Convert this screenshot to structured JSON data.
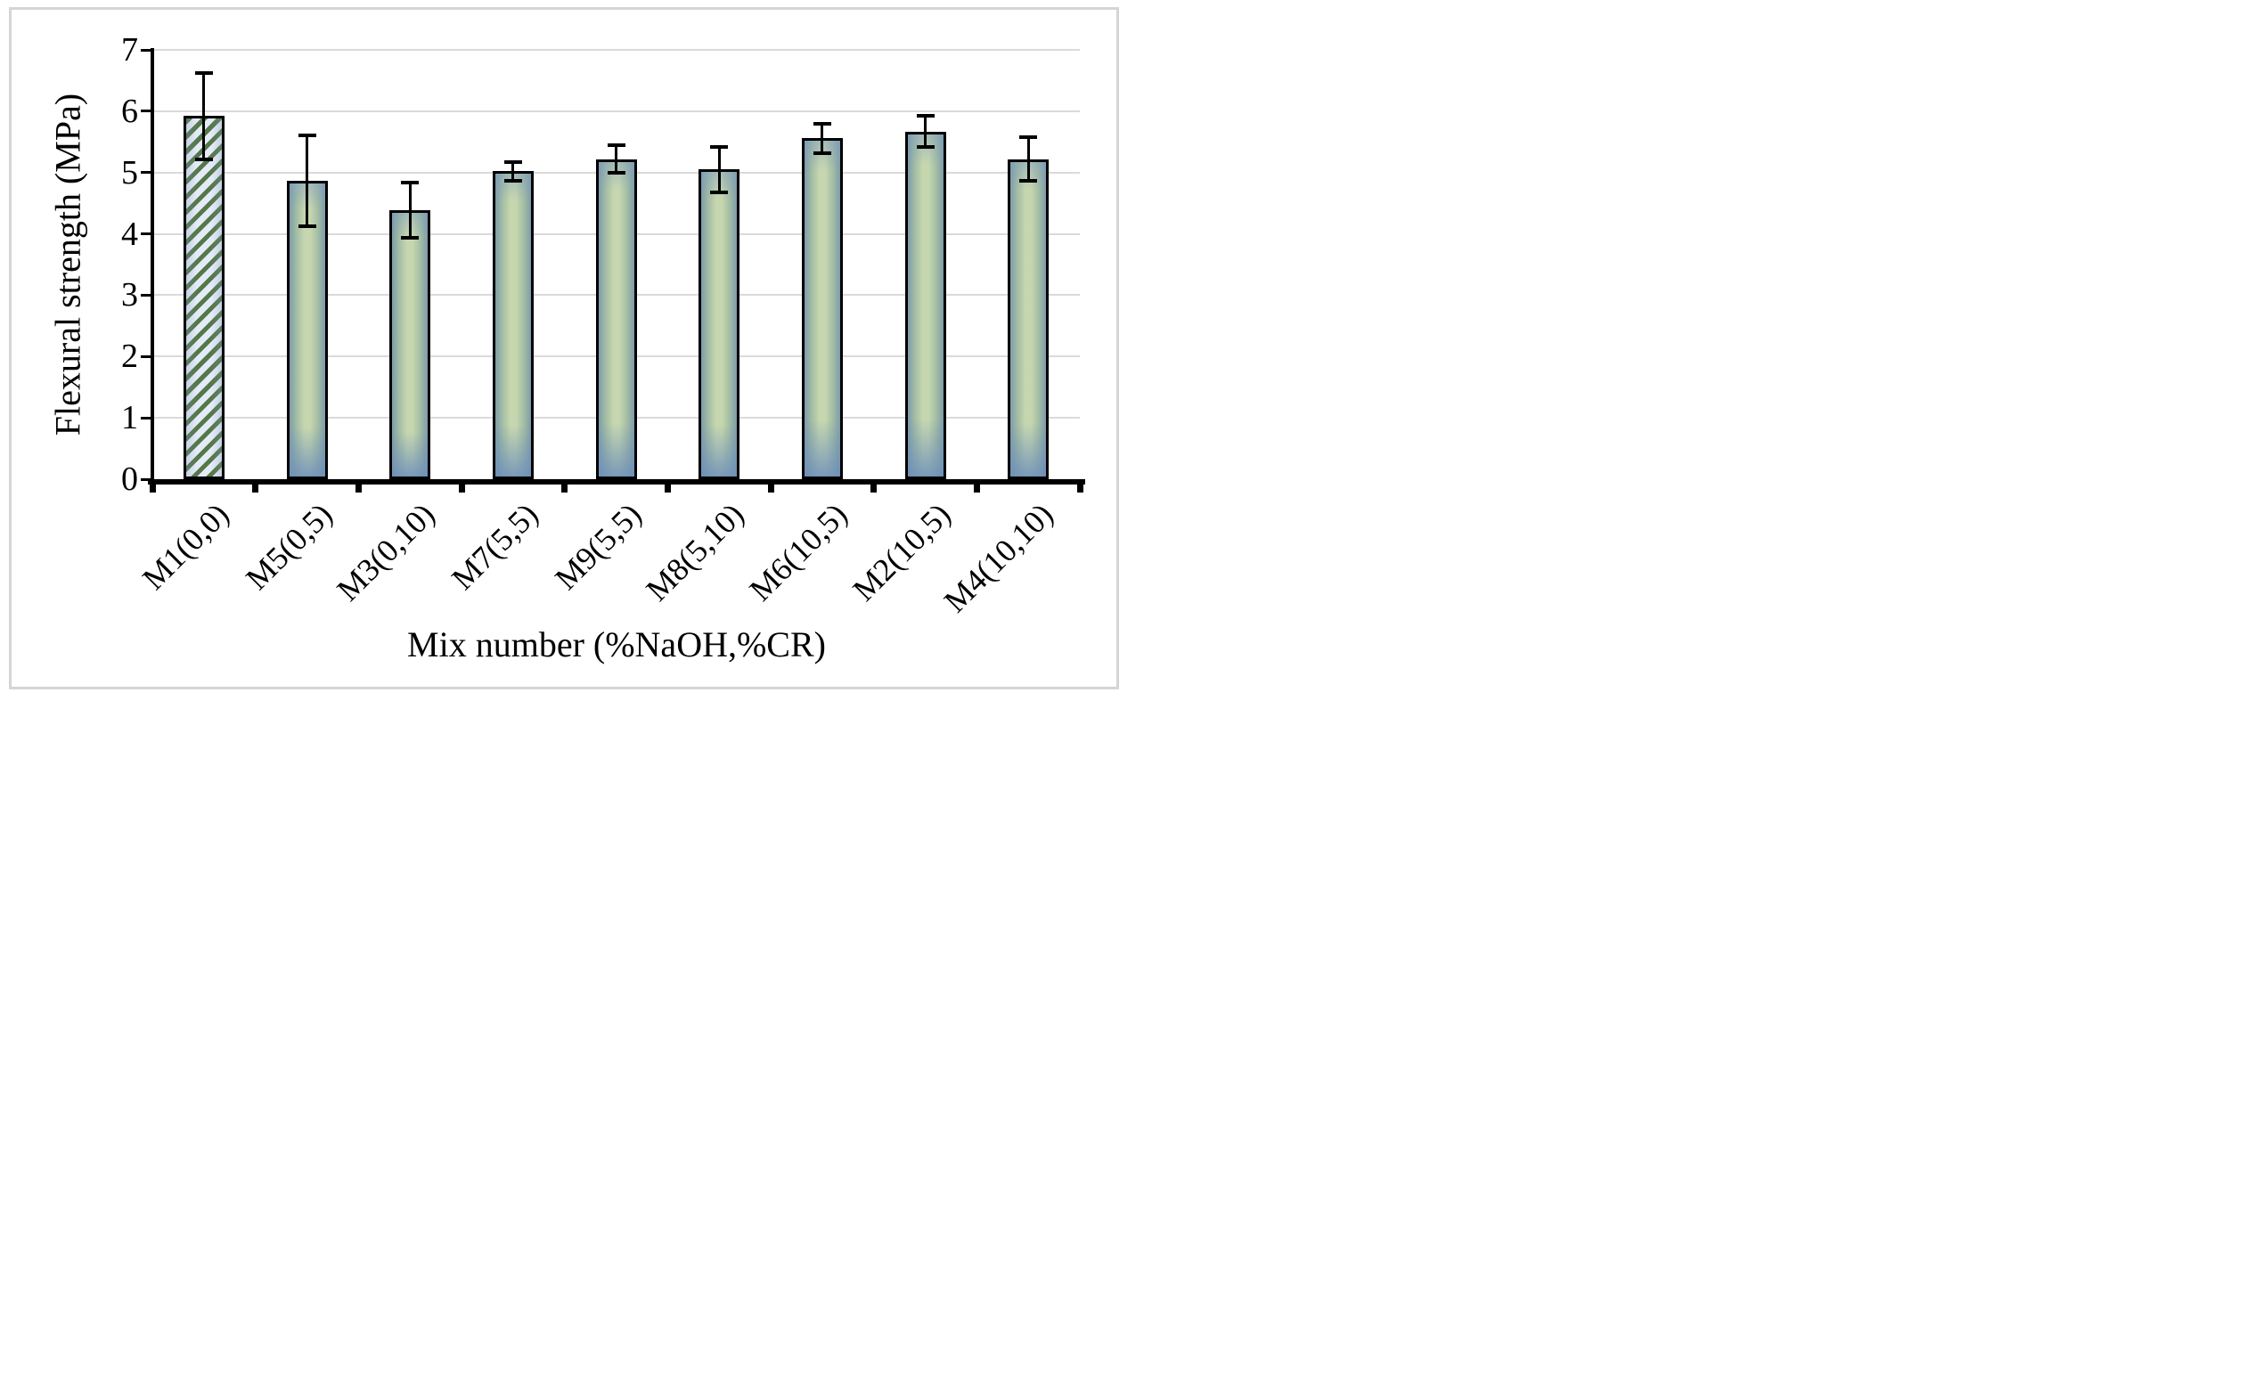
{
  "figure": {
    "kind": "excel-style bar chart figure",
    "background": "#ffffff"
  },
  "chart_data": {
    "type": "bar",
    "title": "",
    "xlabel": "Mix number (%NaOH,%CR)",
    "ylabel": "Flexural strength (MPa)",
    "ylim": [
      0,
      7
    ],
    "yticks": [
      0,
      1,
      2,
      3,
      4,
      5,
      6,
      7
    ],
    "grid": "horizontal-light-gray",
    "legend_position": "none",
    "categories": [
      "M1(0,0)",
      "M5(0,5)",
      "M3(0,10)",
      "M7(5,5)",
      "M9(5,5)",
      "M8(5,10)",
      "M6(10,5)",
      "M2(10,5)",
      "M4(10,10)"
    ],
    "series": [
      {
        "name": "Flexural strength",
        "values": [
          5.92,
          4.87,
          4.39,
          5.02,
          5.22,
          5.05,
          5.56,
          5.67,
          5.22
        ],
        "error_bars": [
          0.7,
          0.74,
          0.45,
          0.15,
          0.22,
          0.37,
          0.24,
          0.25,
          0.35
        ]
      }
    ],
    "bar_styles": [
      "hatched-diagonal",
      "solid",
      "solid",
      "solid",
      "solid",
      "solid",
      "solid",
      "solid",
      "solid"
    ]
  },
  "style": {
    "frame_color": "#d5d5d5",
    "grid_color": "#dadada",
    "axis_color": "#000000",
    "bar_border_color": "#000000",
    "bar_center_color": "#c6d7af",
    "bar_edge_color": "#7e9cab",
    "hatch_green": "#55784a",
    "hatch_bg": "#e4ebf7",
    "error_bar_color": "#000000"
  }
}
